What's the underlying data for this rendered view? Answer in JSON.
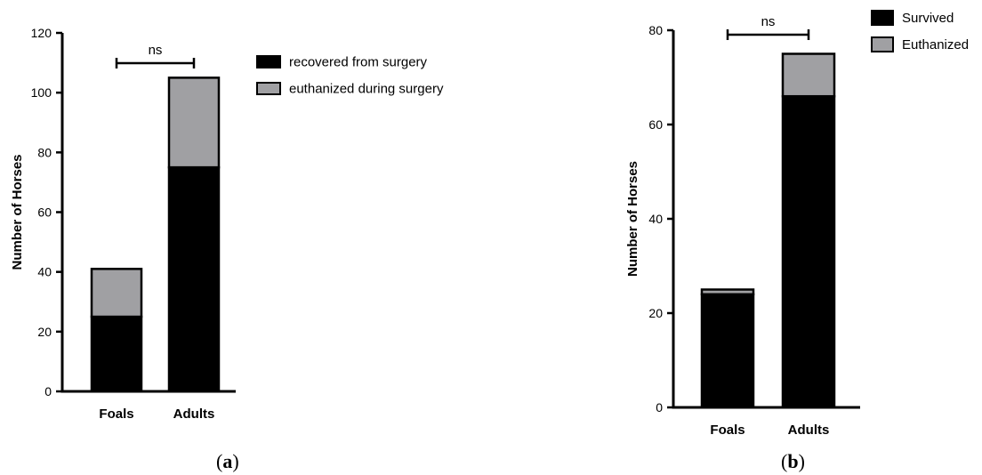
{
  "chart_data": [
    {
      "type": "bar",
      "stacked": true,
      "panel_label": "a",
      "ylabel": "Number of Horses",
      "ylim": [
        0,
        120
      ],
      "yticks": [
        0,
        20,
        40,
        60,
        80,
        100,
        120
      ],
      "categories": [
        "Foals",
        "Adults"
      ],
      "series": [
        {
          "name": "recovered from surgery",
          "values": [
            25,
            75
          ],
          "color": "#000000"
        },
        {
          "name": "euthanized during surgery",
          "values": [
            16,
            30
          ],
          "color": "#a0a0a3"
        }
      ],
      "significance": {
        "label": "ns",
        "between": [
          "Foals",
          "Adults"
        ]
      },
      "legend": "top-right",
      "grid": false
    },
    {
      "type": "bar",
      "stacked": true,
      "panel_label": "b",
      "ylabel": "Number of Horses",
      "ylim": [
        0,
        80
      ],
      "yticks": [
        0,
        20,
        40,
        60,
        80
      ],
      "categories": [
        "Foals",
        "Adults"
      ],
      "series": [
        {
          "name": "Survived",
          "values": [
            24,
            66
          ],
          "color": "#000000"
        },
        {
          "name": "Euthanized",
          "values": [
            1,
            9
          ],
          "color": "#a0a0a3"
        }
      ],
      "significance": {
        "label": "ns",
        "between": [
          "Foals",
          "Adults"
        ]
      },
      "legend": "top-right",
      "grid": false
    }
  ]
}
